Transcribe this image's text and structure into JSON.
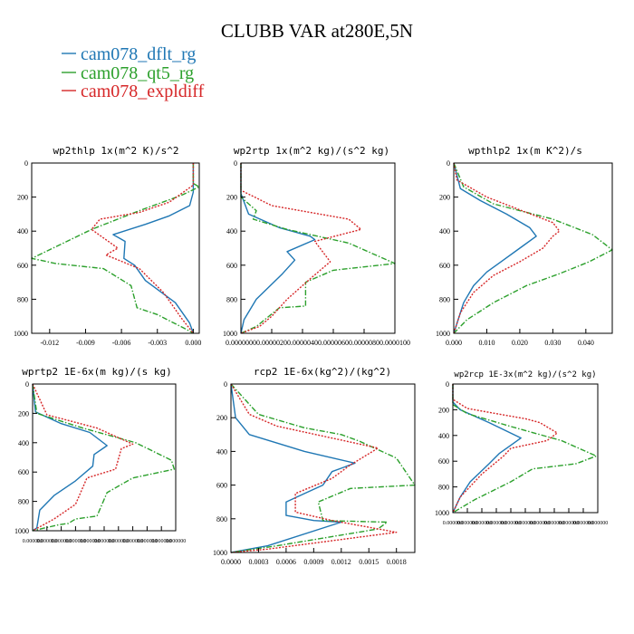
{
  "figure": {
    "title": "CLUBB VAR at280E,5N"
  },
  "legend": [
    {
      "label": "cam078_dflt_rg",
      "color": "#1f77b4",
      "dash": "solid"
    },
    {
      "label": "cam078_qt5_rg",
      "color": "#2ca02c",
      "dash": "dashdot"
    },
    {
      "label": "cam078_expldiff",
      "color": "#d62728",
      "dash": "dot"
    }
  ],
  "chart_data": [
    {
      "type": "line",
      "title": "wp2thlp   1x(m^2 K)/s^2",
      "xlim": [
        -0.0135,
        0.0005
      ],
      "ylim": [
        1000,
        0
      ],
      "xticks": [
        -0.012,
        -0.009,
        -0.006,
        -0.003,
        0.0
      ],
      "xtick_labels": [
        "-0.012",
        "-0.009",
        "-0.006",
        "-0.003",
        "0.000"
      ],
      "yticks": [
        0,
        200,
        400,
        600,
        800,
        1000
      ],
      "ytick_labels": [
        "0",
        "200",
        "400",
        "600",
        "800",
        "1000"
      ],
      "series": [
        {
          "name": "cam078_dflt_rg",
          "x": [
            0.0,
            0.0,
            -0.0003,
            -0.002,
            -0.004,
            -0.0067,
            -0.0057,
            -0.0058,
            -0.0049,
            -0.004,
            -0.0015,
            -0.0003,
            0.0
          ],
          "y": [
            0,
            170,
            250,
            310,
            360,
            420,
            460,
            560,
            600,
            690,
            820,
            940,
            1000
          ]
        },
        {
          "name": "cam078_qt5_rg",
          "x": [
            0.0,
            0.0,
            0.0005,
            -0.001,
            -0.0045,
            -0.0085,
            -0.0135,
            -0.0115,
            -0.0075,
            -0.0052,
            -0.0047,
            -0.003,
            -0.0005,
            0.0
          ],
          "y": [
            0,
            120,
            140,
            190,
            280,
            390,
            560,
            590,
            620,
            720,
            850,
            890,
            980,
            1000
          ]
        },
        {
          "name": "cam078_expldiff",
          "x": [
            0.0,
            0.0,
            -0.002,
            -0.0045,
            -0.0078,
            -0.0085,
            -0.0063,
            -0.0073,
            -0.0045,
            -0.0025,
            -0.001,
            0.0
          ],
          "y": [
            0,
            130,
            230,
            290,
            330,
            390,
            500,
            540,
            620,
            760,
            910,
            1000
          ]
        }
      ]
    },
    {
      "type": "line",
      "title": "wp2rtp   1x(m^2 kg)/(s^2 kg)",
      "xlim": [
        0.0,
        1e-05
      ],
      "ylim": [
        1000,
        0
      ],
      "xticks": [
        0.0,
        2e-06,
        4e-06,
        6e-06,
        8e-06,
        1e-05
      ],
      "xtick_labels": [
        "0.0000000",
        "0.0000020",
        "0.0000040",
        "0.0000060",
        "0.0000080",
        "0.0000100"
      ],
      "yticks": [
        0,
        200,
        400,
        600,
        800,
        1000
      ],
      "ytick_labels": [
        "0",
        "200",
        "400",
        "600",
        "800",
        "1000"
      ],
      "series": [
        {
          "name": "cam078_dflt_rg",
          "x": [
            0.0,
            0.0,
            5e-07,
            2.5e-06,
            4.5e-06,
            4.8e-06,
            3e-06,
            3.5e-06,
            2.7e-06,
            1e-06,
            2e-07,
            0.0
          ],
          "y": [
            0,
            180,
            300,
            380,
            430,
            450,
            520,
            570,
            650,
            800,
            920,
            1000
          ]
        },
        {
          "name": "cam078_qt5_rg",
          "x": [
            0.0,
            0.0,
            1e-06,
            8e-07,
            3e-06,
            7e-06,
            1e-05,
            6e-06,
            4.2e-06,
            4.2e-06,
            2.5e-06,
            1e-06,
            0.0
          ],
          "y": [
            0,
            200,
            280,
            330,
            390,
            470,
            590,
            630,
            700,
            840,
            850,
            960,
            1000
          ]
        },
        {
          "name": "cam078_expldiff",
          "x": [
            0.0,
            0.0,
            2e-06,
            7e-06,
            7.8e-06,
            4.8e-06,
            5.8e-06,
            4.5e-06,
            3e-06,
            2e-06,
            1.2e-06,
            0.0
          ],
          "y": [
            0,
            160,
            250,
            330,
            390,
            460,
            580,
            680,
            800,
            900,
            960,
            1000
          ]
        }
      ]
    },
    {
      "type": "line",
      "title": "wpthlp2   1x(m K^2)/s",
      "xlim": [
        0.0,
        0.048
      ],
      "ylim": [
        1000,
        0
      ],
      "xticks": [
        0.0,
        0.01,
        0.02,
        0.03,
        0.04
      ],
      "xtick_labels": [
        "0.000",
        "0.010",
        "0.020",
        "0.030",
        "0.040"
      ],
      "yticks": [
        0,
        200,
        400,
        600,
        800,
        1000
      ],
      "ytick_labels": [
        "0",
        "200",
        "400",
        "600",
        "800",
        "1000"
      ],
      "series": [
        {
          "name": "cam078_dflt_rg",
          "x": [
            0.0,
            0.002,
            0.008,
            0.016,
            0.023,
            0.025,
            0.02,
            0.015,
            0.01,
            0.006,
            0.003,
            0.0
          ],
          "y": [
            0,
            150,
            220,
            300,
            380,
            430,
            500,
            570,
            640,
            720,
            820,
            1000
          ]
        },
        {
          "name": "cam078_qt5_rg",
          "x": [
            0.0,
            0.003,
            0.012,
            0.03,
            0.042,
            0.048,
            0.041,
            0.032,
            0.022,
            0.012,
            0.004,
            0.0
          ],
          "y": [
            0,
            140,
            240,
            330,
            420,
            510,
            580,
            650,
            720,
            820,
            920,
            1000
          ]
        },
        {
          "name": "cam078_expldiff",
          "x": [
            0.0,
            0.001,
            0.01,
            0.03,
            0.032,
            0.03,
            0.027,
            0.02,
            0.012,
            0.006,
            0.002,
            0.0
          ],
          "y": [
            0,
            100,
            200,
            350,
            400,
            430,
            500,
            580,
            660,
            760,
            880,
            1000
          ]
        }
      ]
    },
    {
      "type": "line",
      "title": "wprtp2   1E-6x(m kg)/(s kg)",
      "xlim": [
        0.0,
        1.0
      ],
      "ylim": [
        1000,
        0
      ],
      "xticks": [
        0.0,
        0.1,
        0.2,
        0.3,
        0.4,
        0.5,
        0.6,
        0.7,
        0.8,
        0.9,
        1.0
      ],
      "xtick_labels": [
        "0.000000",
        "0.000000",
        "0.000000",
        "0.000000",
        "0.000000",
        "0.000000",
        "0.000000",
        "0.000000",
        "0.000000",
        "0.000000",
        "0.000000"
      ],
      "yticks": [
        0,
        200,
        400,
        600,
        800,
        1000
      ],
      "ytick_labels": [
        "0",
        "200",
        "400",
        "600",
        "800",
        "1000"
      ],
      "series": [
        {
          "name": "cam078_dflt_rg",
          "x": [
            0.0,
            0.02,
            0.2,
            0.4,
            0.52,
            0.43,
            0.42,
            0.3,
            0.15,
            0.05,
            0.03,
            0.0
          ],
          "y": [
            0,
            190,
            270,
            330,
            420,
            480,
            560,
            660,
            760,
            860,
            980,
            1000
          ]
        },
        {
          "name": "cam078_qt5_rg",
          "x": [
            0.0,
            0.03,
            0.35,
            0.72,
            0.97,
            0.99,
            0.7,
            0.52,
            0.45,
            0.3,
            0.25,
            0.18,
            0.0
          ],
          "y": [
            0,
            200,
            300,
            400,
            520,
            580,
            640,
            740,
            900,
            920,
            950,
            960,
            1000
          ]
        },
        {
          "name": "cam078_expldiff",
          "x": [
            0.0,
            0.1,
            0.45,
            0.7,
            0.62,
            0.58,
            0.38,
            0.3,
            0.15,
            0.0
          ],
          "y": [
            0,
            210,
            300,
            410,
            440,
            580,
            640,
            820,
            920,
            1000
          ]
        }
      ]
    },
    {
      "type": "line",
      "title": "rcp2   1E-6x(kg^2)/(kg^2)",
      "xlim": [
        0.0,
        0.002
      ],
      "ylim": [
        1000,
        0
      ],
      "xticks": [
        0.0,
        0.0003,
        0.0006,
        0.0009,
        0.0012,
        0.0015,
        0.0018
      ],
      "xtick_labels": [
        "0.0000",
        "0.0003",
        "0.0006",
        "0.0009",
        "0.0012",
        "0.0015",
        "0.0018"
      ],
      "yticks": [
        0,
        200,
        400,
        600,
        800,
        1000
      ],
      "ytick_labels": [
        "0",
        "200",
        "400",
        "600",
        "800",
        "1000"
      ],
      "series": [
        {
          "name": "cam078_dflt_rg",
          "x": [
            0.0,
            5e-05,
            0.0002,
            0.0008,
            0.00135,
            0.0011,
            0.001,
            0.0008,
            0.0006,
            0.0006,
            0.0009,
            0.0012,
            0.0004,
            0.0
          ],
          "y": [
            0,
            200,
            300,
            400,
            470,
            520,
            600,
            650,
            700,
            780,
            810,
            820,
            960,
            1000
          ]
        },
        {
          "name": "cam078_qt5_rg",
          "x": [
            0.0,
            0.0003,
            0.0008,
            0.0012,
            0.0014,
            0.0018,
            0.002,
            0.0013,
            0.00095,
            0.001,
            0.0017,
            0.0016,
            0.0005,
            0.0
          ],
          "y": [
            0,
            180,
            260,
            300,
            340,
            440,
            600,
            620,
            700,
            810,
            820,
            860,
            960,
            1000
          ]
        },
        {
          "name": "cam078_expldiff",
          "x": [
            0.0,
            0.0002,
            0.0005,
            0.0016,
            0.0013,
            0.0011,
            0.0007,
            0.0007,
            0.0011,
            0.0018,
            0.0004,
            0.0
          ],
          "y": [
            0,
            180,
            250,
            380,
            480,
            560,
            650,
            760,
            810,
            880,
            980,
            1000
          ]
        }
      ]
    },
    {
      "type": "line",
      "title": "wp2rcp   1E-3x(m^2 kg)/(s^2 kg)",
      "xlim": [
        0.0,
        1.0
      ],
      "ylim": [
        1000,
        0
      ],
      "xticks": [
        0.0,
        0.1,
        0.2,
        0.3,
        0.4,
        0.5,
        0.6,
        0.7,
        0.8,
        0.9,
        1.0
      ],
      "xtick_labels": [
        "0.000000",
        "0.000000",
        "0.000000",
        "0.000000",
        "0.000000",
        "0.000000",
        "0.000000",
        "0.000000",
        "0.000000",
        "0.000000",
        "0.000000"
      ],
      "yticks": [
        0,
        200,
        400,
        600,
        800,
        1000
      ],
      "ytick_labels": [
        "0",
        "200",
        "400",
        "600",
        "800",
        "1000"
      ],
      "series": [
        {
          "name": "cam078_dflt_rg",
          "x": [
            0.0,
            0.0,
            0.05,
            0.25,
            0.47,
            0.42,
            0.32,
            0.25,
            0.12,
            0.05,
            0.0
          ],
          "y": [
            0,
            140,
            200,
            300,
            420,
            460,
            540,
            620,
            760,
            880,
            1000
          ]
        },
        {
          "name": "cam078_qt5_rg",
          "x": [
            0.0,
            0.0,
            0.1,
            0.4,
            0.75,
            0.99,
            0.85,
            0.55,
            0.4,
            0.15,
            0.0
          ],
          "y": [
            0,
            160,
            230,
            330,
            440,
            560,
            620,
            660,
            760,
            900,
            1000
          ]
        },
        {
          "name": "cam078_expldiff",
          "x": [
            0.0,
            0.0,
            0.1,
            0.5,
            0.6,
            0.72,
            0.65,
            0.4,
            0.35,
            0.2,
            0.05,
            0.0
          ],
          "y": [
            0,
            120,
            190,
            270,
            300,
            380,
            440,
            500,
            560,
            700,
            880,
            1000
          ]
        }
      ]
    }
  ]
}
